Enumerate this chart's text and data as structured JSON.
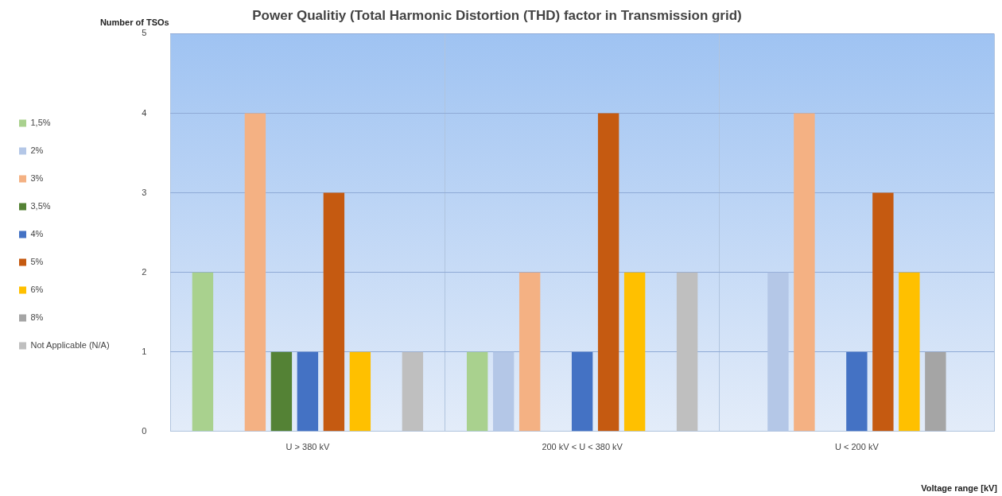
{
  "chart_data": {
    "type": "bar",
    "title": "Power Qualitiy (Total Harmonic Distortion (THD) factor in Transmission grid)",
    "xlabel": "Voltage range [kV]",
    "ylabel": "Number of TSOs",
    "categories": [
      "U > 380 kV",
      "200 kV < U < 380 kV",
      "U < 200 kV"
    ],
    "series": [
      {
        "name": "1,5%",
        "color": "#a9d18e",
        "values": [
          2,
          1,
          0
        ]
      },
      {
        "name": "2%",
        "color": "#b4c7e7",
        "values": [
          0,
          1,
          2
        ]
      },
      {
        "name": "3%",
        "color": "#f4b183",
        "values": [
          4,
          2,
          4
        ]
      },
      {
        "name": "3,5%",
        "color": "#548235",
        "values": [
          1,
          0,
          0
        ]
      },
      {
        "name": "4%",
        "color": "#4472c4",
        "values": [
          1,
          1,
          1
        ]
      },
      {
        "name": "5%",
        "color": "#c55a11",
        "values": [
          3,
          4,
          3
        ]
      },
      {
        "name": "6%",
        "color": "#ffc000",
        "values": [
          1,
          2,
          2
        ]
      },
      {
        "name": "8%",
        "color": "#a5a5a5",
        "values": [
          0,
          0,
          1
        ]
      },
      {
        "name": "Not Applicable (N/A)",
        "color": "#bfbfbf",
        "values": [
          1,
          2,
          0
        ]
      }
    ],
    "ylim": [
      0,
      5
    ],
    "yticks": [
      0,
      1,
      2,
      3,
      4,
      5
    ],
    "grid": true,
    "legend": "left"
  }
}
